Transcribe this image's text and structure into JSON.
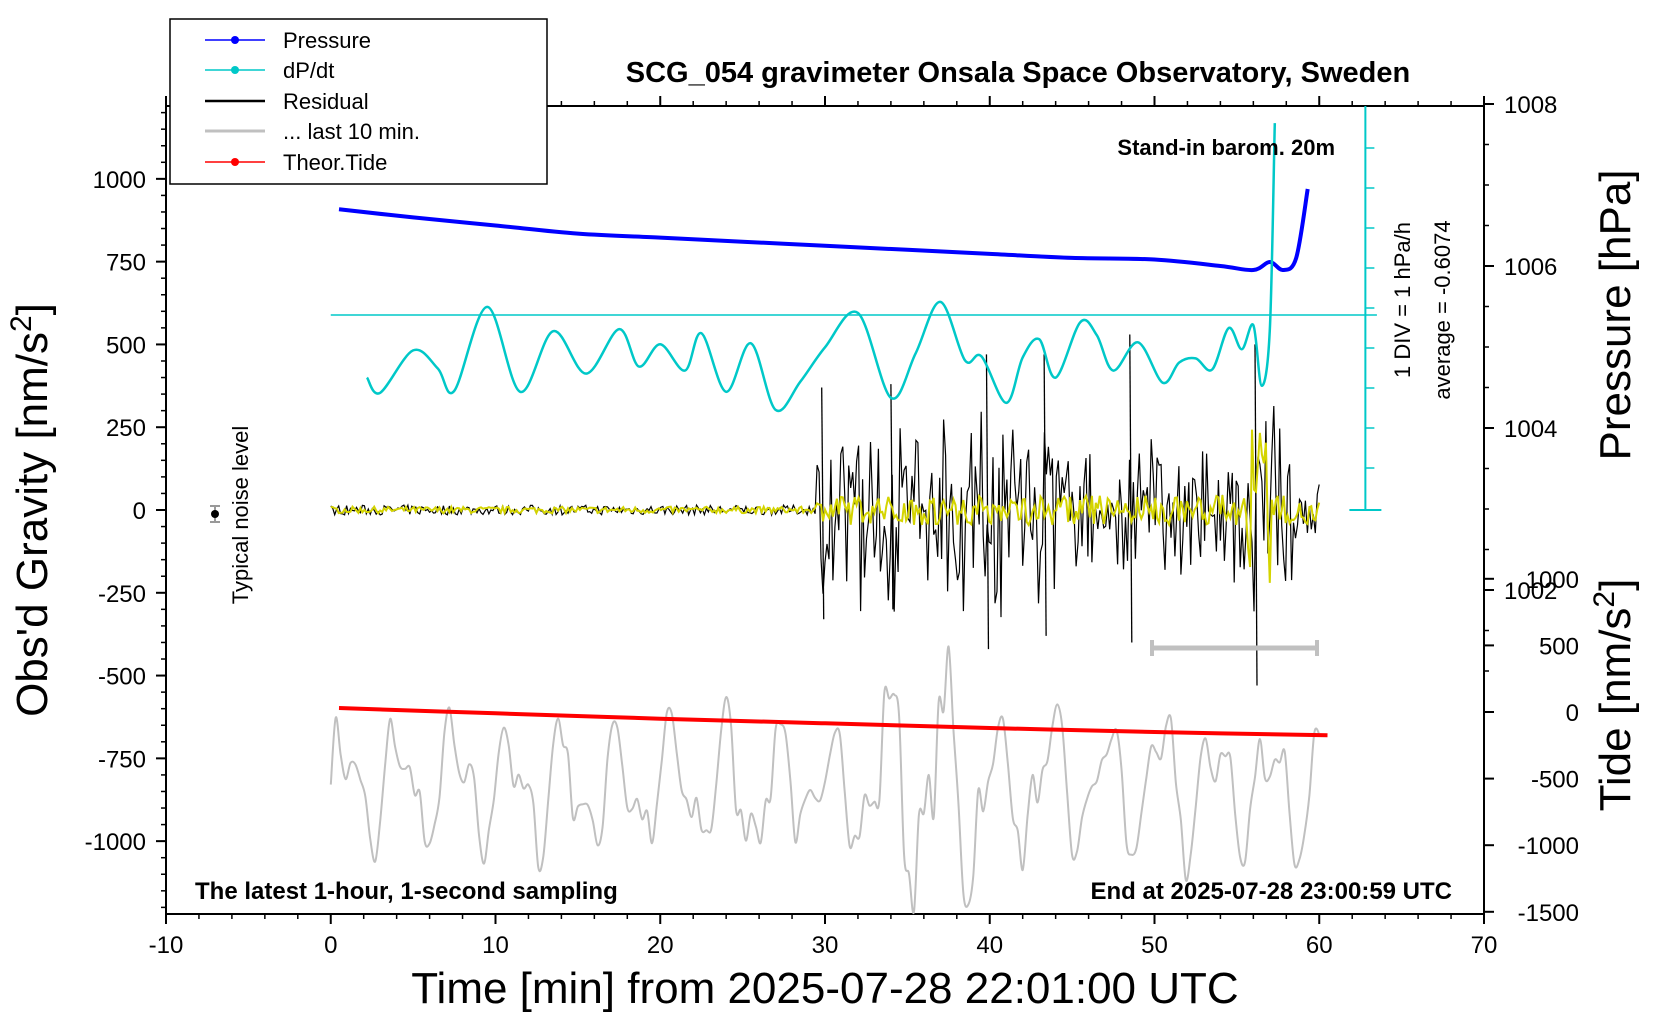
{
  "chart_data": {
    "type": "line",
    "title": "SCG_054 gravimeter Onsala Space Observatory, Sweden",
    "xlabel": "Time [min] from 2025-07-28 22:01:00 UTC",
    "ylabel_left_main": "Obs'd Gravity [nm/s",
    "ylabel_left_sup": "2",
    "ylabel_left_end": "]",
    "ylabel_right_pressure": "Pressure [hPa]",
    "ylabel_right_tide_main": "Tide [nm/s",
    "ylabel_right_tide_sup": "2",
    "ylabel_right_tide_end": "]",
    "xlim": [
      -10,
      70
    ],
    "ylim_gravity": [
      -1220,
      1220
    ],
    "ylim_pressure_ticks": [
      1002,
      1004,
      1006,
      1008
    ],
    "ylim_tide_ticks": [
      -1500,
      -1000,
      -500,
      0,
      500,
      1000
    ],
    "x_ticks": [
      -10,
      0,
      10,
      20,
      30,
      40,
      50,
      60,
      70
    ],
    "x_tick_labels": [
      "-10",
      "0",
      "10",
      "20",
      "30",
      "40",
      "50",
      "60",
      "70"
    ],
    "y_ticks_gravity": [
      -1000,
      -750,
      -500,
      -250,
      0,
      250,
      500,
      750,
      1000
    ],
    "y_tick_labels_gravity": [
      "-1000",
      "-750",
      "-500",
      "-250",
      "0",
      "250",
      "500",
      "750",
      "1000"
    ],
    "y_tick_labels_pressure": [
      "1002",
      "1004",
      "1006",
      "1008"
    ],
    "y_tick_labels_tide": [
      "-1500",
      "-1000",
      "-500",
      "0",
      "500",
      "1000"
    ],
    "annotations": {
      "stand_in": "Stand-in barom. 20m",
      "noise": "Typical noise level",
      "latest": "The latest 1-hour, 1-second sampling",
      "end_at": "End at 2025-07-28 23:00:59 UTC",
      "div": "1 DIV = 1 hPa/h",
      "average": "average = -0.6074"
    },
    "legend": [
      {
        "label": "Pressure",
        "color": "#0000ff",
        "marker": true
      },
      {
        "label": "dP/dt",
        "color": "#00c8c8",
        "marker": true
      },
      {
        "label": "Residual",
        "color": "#000000",
        "marker": false
      },
      {
        "label": "... last 10 min.",
        "color": "#c0c0c0",
        "marker": false
      },
      {
        "label": "Theor.Tide",
        "color": "#ff0000",
        "marker": true
      }
    ],
    "series": [
      {
        "name": "Pressure",
        "color": "#0000ff",
        "x": [
          0.5,
          5,
          10,
          15,
          20,
          25,
          30,
          35,
          40,
          45,
          50,
          54,
          56,
          57,
          57.8,
          58.6,
          59.3
        ],
        "y": [
          1006.7,
          1006.6,
          1006.5,
          1006.4,
          1006.35,
          1006.3,
          1006.25,
          1006.2,
          1006.15,
          1006.1,
          1006.08,
          1006.0,
          1005.95,
          1006.05,
          1005.95,
          1006.1,
          1006.95
        ]
      },
      {
        "name": "dP/dt",
        "color": "#00c8c8",
        "x": [
          2.2,
          3,
          5,
          6.5,
          7.5,
          9.5,
          11.5,
          13.5,
          15.5,
          17.5,
          18.7,
          20,
          21.5,
          22.5,
          24,
          25.5,
          27,
          28.5,
          30,
          32,
          34,
          35.5,
          37,
          38.5,
          39.5,
          41,
          42,
          43,
          44,
          45.5,
          46.5,
          47.5,
          49,
          50.5,
          51.5,
          52.5,
          53.5,
          54.5,
          55.3,
          56,
          56.5,
          57,
          57.3
        ],
        "y": [
          0.38,
          0.23,
          0.65,
          0.47,
          0.25,
          1.08,
          0.24,
          0.84,
          0.42,
          0.86,
          0.49,
          0.71,
          0.45,
          0.82,
          0.24,
          0.72,
          0.06,
          0.34,
          0.68,
          1.02,
          0.18,
          0.62,
          1.13,
          0.55,
          0.59,
          0.13,
          0.58,
          0.76,
          0.38,
          0.93,
          0.8,
          0.45,
          0.73,
          0.33,
          0.53,
          0.57,
          0.46,
          0.87,
          0.66,
          0.9,
          0.3,
          0.85,
          2.9
        ]
      },
      {
        "name": "Theor.Tide",
        "color": "#ff0000",
        "x": [
          0.5,
          10,
          20,
          30,
          40,
          50,
          60.5
        ],
        "y": [
          30,
          -10,
          -50,
          -85,
          -120,
          -150,
          -175
        ]
      }
    ]
  }
}
